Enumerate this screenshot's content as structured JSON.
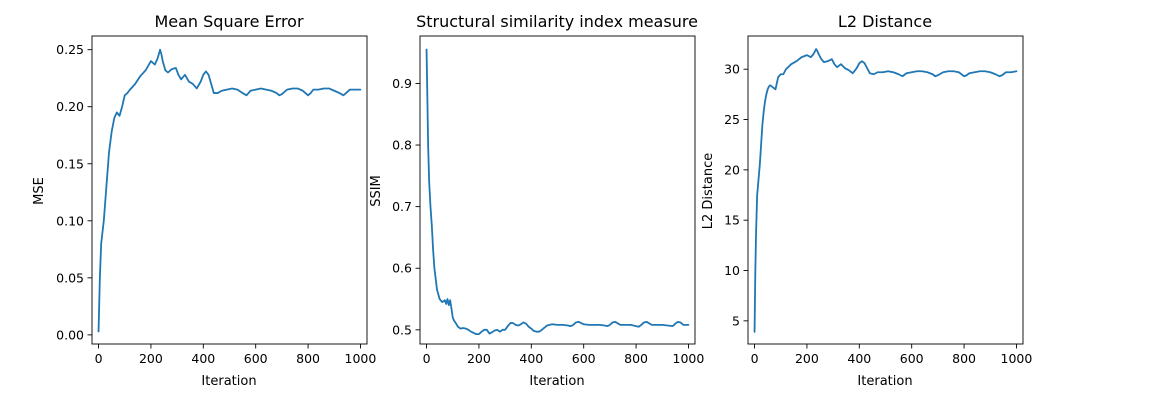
{
  "chart_data": [
    {
      "type": "line",
      "title": "Mean Square Error",
      "xlabel": "Iteration",
      "ylabel": "MSE",
      "xlim": [
        -25,
        1025
      ],
      "ylim": [
        -0.008,
        0.262
      ],
      "xticks": [
        0,
        200,
        400,
        600,
        800,
        1000
      ],
      "xtick_labels": [
        "0",
        "200",
        "400",
        "600",
        "800",
        "1000"
      ],
      "yticks": [
        0.0,
        0.05,
        0.1,
        0.15,
        0.2,
        0.25
      ],
      "ytick_labels": [
        "0.00",
        "0.05",
        "0.10",
        "0.15",
        "0.20",
        "0.25"
      ],
      "grid": false,
      "color": "#1f77b4",
      "series": [
        {
          "x": [
            0,
            5,
            10,
            20,
            30,
            40,
            50,
            60,
            70,
            80,
            90,
            100,
            110,
            120,
            140,
            160,
            180,
            200,
            215,
            225,
            235,
            240,
            245,
            255,
            265,
            280,
            295,
            305,
            315,
            330,
            345,
            360,
            375,
            390,
            400,
            410,
            420,
            440,
            455,
            470,
            490,
            510,
            530,
            550,
            565,
            580,
            600,
            620,
            640,
            660,
            680,
            690,
            700,
            720,
            740,
            760,
            780,
            800,
            810,
            820,
            840,
            860,
            880,
            900,
            920,
            935,
            945,
            960,
            980,
            1000
          ],
          "y": [
            0.003,
            0.05,
            0.08,
            0.1,
            0.13,
            0.16,
            0.178,
            0.19,
            0.195,
            0.192,
            0.2,
            0.21,
            0.212,
            0.215,
            0.22,
            0.227,
            0.232,
            0.24,
            0.237,
            0.242,
            0.25,
            0.246,
            0.24,
            0.232,
            0.23,
            0.233,
            0.234,
            0.228,
            0.224,
            0.228,
            0.222,
            0.22,
            0.216,
            0.222,
            0.228,
            0.231,
            0.228,
            0.212,
            0.212,
            0.214,
            0.215,
            0.216,
            0.215,
            0.212,
            0.21,
            0.214,
            0.215,
            0.216,
            0.215,
            0.214,
            0.212,
            0.21,
            0.211,
            0.215,
            0.216,
            0.216,
            0.214,
            0.21,
            0.212,
            0.215,
            0.215,
            0.216,
            0.216,
            0.214,
            0.212,
            0.21,
            0.212,
            0.215,
            0.215,
            0.215
          ]
        }
      ]
    },
    {
      "type": "line",
      "title": "Structural similarity index measure",
      "xlabel": "Iteration",
      "ylabel": "SSIM",
      "xlim": [
        -25,
        1025
      ],
      "ylim": [
        0.477,
        0.977
      ],
      "xticks": [
        0,
        200,
        400,
        600,
        800,
        1000
      ],
      "xtick_labels": [
        "0",
        "200",
        "400",
        "600",
        "800",
        "1000"
      ],
      "yticks": [
        0.5,
        0.6,
        0.7,
        0.8,
        0.9
      ],
      "ytick_labels": [
        "0.5",
        "0.6",
        "0.7",
        "0.8",
        "0.9"
      ],
      "grid": false,
      "color": "#1f77b4",
      "series": [
        {
          "x": [
            0,
            3,
            6,
            10,
            15,
            20,
            25,
            30,
            40,
            50,
            60,
            70,
            75,
            80,
            85,
            90,
            95,
            100,
            105,
            110,
            120,
            130,
            140,
            150,
            160,
            170,
            180,
            190,
            200,
            210,
            220,
            230,
            240,
            250,
            260,
            270,
            280,
            290,
            300,
            310,
            320,
            330,
            340,
            350,
            360,
            370,
            380,
            390,
            400,
            410,
            420,
            430,
            440,
            460,
            480,
            500,
            520,
            540,
            550,
            560,
            570,
            580,
            600,
            620,
            640,
            660,
            680,
            690,
            700,
            710,
            720,
            740,
            760,
            780,
            800,
            810,
            820,
            830,
            840,
            860,
            880,
            900,
            920,
            940,
            950,
            960,
            970,
            980,
            1000
          ],
          "y": [
            0.955,
            0.88,
            0.8,
            0.74,
            0.7,
            0.67,
            0.63,
            0.6,
            0.565,
            0.55,
            0.545,
            0.548,
            0.542,
            0.55,
            0.54,
            0.548,
            0.535,
            0.52,
            0.515,
            0.512,
            0.505,
            0.502,
            0.503,
            0.502,
            0.5,
            0.497,
            0.495,
            0.493,
            0.493,
            0.497,
            0.5,
            0.5,
            0.494,
            0.496,
            0.499,
            0.5,
            0.497,
            0.5,
            0.5,
            0.506,
            0.511,
            0.511,
            0.508,
            0.507,
            0.509,
            0.512,
            0.51,
            0.505,
            0.502,
            0.498,
            0.497,
            0.497,
            0.5,
            0.507,
            0.509,
            0.508,
            0.508,
            0.507,
            0.506,
            0.508,
            0.512,
            0.513,
            0.509,
            0.508,
            0.508,
            0.508,
            0.507,
            0.506,
            0.508,
            0.512,
            0.513,
            0.508,
            0.508,
            0.508,
            0.506,
            0.505,
            0.508,
            0.512,
            0.513,
            0.508,
            0.508,
            0.508,
            0.507,
            0.506,
            0.51,
            0.513,
            0.512,
            0.508,
            0.508
          ]
        }
      ]
    },
    {
      "type": "line",
      "title": "L2 Distance",
      "xlabel": "Iteration",
      "ylabel": "L2 Distance",
      "xlim": [
        -25,
        1025
      ],
      "ylim": [
        2.7,
        33.3
      ],
      "xticks": [
        0,
        200,
        400,
        600,
        800,
        1000
      ],
      "xtick_labels": [
        "0",
        "200",
        "400",
        "600",
        "800",
        "1000"
      ],
      "yticks": [
        5,
        10,
        15,
        20,
        25,
        30
      ],
      "ytick_labels": [
        "5",
        "10",
        "15",
        "20",
        "25",
        "30"
      ],
      "grid": false,
      "color": "#1f77b4",
      "series": [
        {
          "x": [
            0,
            3,
            6,
            10,
            15,
            20,
            25,
            30,
            35,
            40,
            45,
            50,
            55,
            60,
            70,
            80,
            90,
            100,
            110,
            120,
            140,
            160,
            180,
            200,
            215,
            225,
            235,
            240,
            245,
            255,
            265,
            280,
            295,
            305,
            315,
            330,
            345,
            360,
            375,
            390,
            400,
            410,
            420,
            440,
            455,
            470,
            490,
            510,
            530,
            550,
            565,
            580,
            600,
            620,
            640,
            660,
            680,
            690,
            700,
            720,
            740,
            760,
            780,
            800,
            810,
            820,
            840,
            860,
            880,
            900,
            920,
            935,
            945,
            960,
            980,
            1000
          ],
          "y": [
            3.9,
            10,
            14,
            17.5,
            19,
            20.5,
            22.5,
            24.5,
            25.8,
            26.8,
            27.5,
            28,
            28.3,
            28.4,
            28.2,
            28,
            29.2,
            29.5,
            29.5,
            30,
            30.5,
            30.8,
            31.2,
            31.4,
            31.2,
            31.5,
            32,
            31.8,
            31.5,
            31,
            30.7,
            30.8,
            31.0,
            30.5,
            30.2,
            30.5,
            30.1,
            29.9,
            29.6,
            30.1,
            30.6,
            30.8,
            30.6,
            29.6,
            29.5,
            29.7,
            29.7,
            29.8,
            29.7,
            29.5,
            29.3,
            29.6,
            29.7,
            29.8,
            29.8,
            29.7,
            29.5,
            29.3,
            29.4,
            29.7,
            29.8,
            29.8,
            29.7,
            29.3,
            29.4,
            29.6,
            29.7,
            29.8,
            29.8,
            29.7,
            29.5,
            29.3,
            29.4,
            29.7,
            29.7,
            29.8
          ]
        }
      ]
    }
  ]
}
